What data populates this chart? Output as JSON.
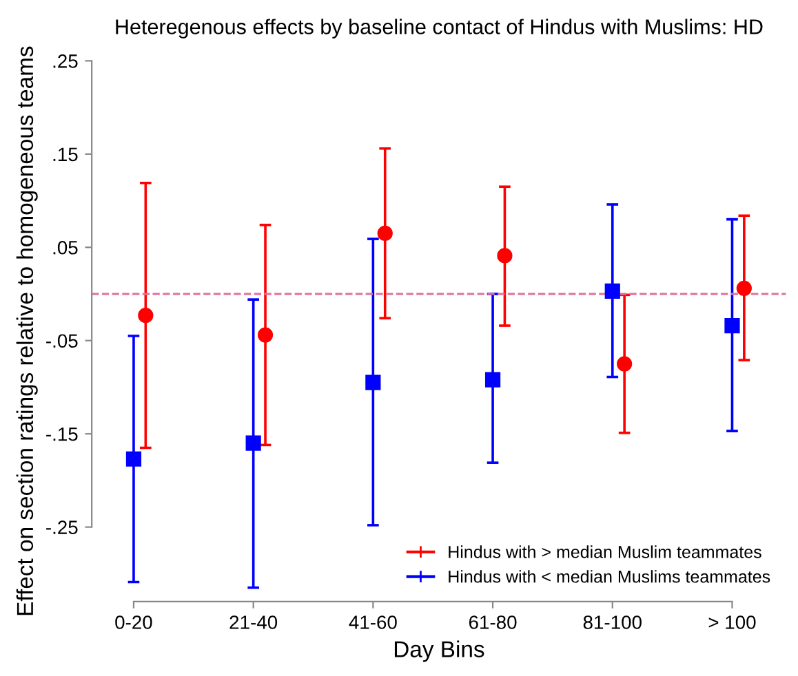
{
  "chart_data": {
    "type": "scatter",
    "title": "Heteregenous effects by baseline contact of Hindus with Muslims: HD",
    "xlabel": "Day Bins",
    "ylabel": "Effect on section ratings relative to homogeneous teams",
    "categories": [
      "0-20",
      "21-40",
      "41-60",
      "61-80",
      "81-100",
      "> 100"
    ],
    "series": [
      {
        "name": "Hindus with > median Muslim teammates",
        "color": "#ff0000",
        "marker": "circle",
        "values": [
          -0.023,
          -0.044,
          0.065,
          0.041,
          -0.075,
          0.006
        ],
        "errors": [
          [
            -0.165,
            0.119
          ],
          [
            -0.162,
            0.074
          ],
          [
            -0.026,
            0.156
          ],
          [
            -0.034,
            0.115
          ],
          [
            -0.149,
            -0.001
          ],
          [
            -0.071,
            0.084
          ]
        ]
      },
      {
        "name": "Hindus with < median Muslims teammates",
        "color": "#0000ff",
        "marker": "square",
        "values": [
          -0.177,
          -0.16,
          -0.095,
          -0.092,
          0.003,
          -0.034
        ],
        "errors": [
          [
            -0.309,
            -0.045
          ],
          [
            -0.315,
            -0.006
          ],
          [
            -0.248,
            0.059
          ],
          [
            -0.181,
            0.0
          ],
          [
            -0.089,
            0.096
          ],
          [
            -0.147,
            0.08
          ]
        ]
      }
    ],
    "ylim": [
      -0.33,
      0.25
    ],
    "yticks": [
      {
        "value": -0.25,
        "label": "-.25"
      },
      {
        "value": -0.15,
        "label": "-.15"
      },
      {
        "value": -0.05,
        "label": "-.05"
      },
      {
        "value": 0.05,
        "label": ".05"
      },
      {
        "value": 0.15,
        "label": ".15"
      },
      {
        "value": 0.25,
        "label": ".25"
      }
    ],
    "ref_lines": [
      {
        "axis": "y",
        "value": 0,
        "color": "#e0709c",
        "line_style": "dashed"
      }
    ],
    "grid": false,
    "legend": "bottom right"
  }
}
